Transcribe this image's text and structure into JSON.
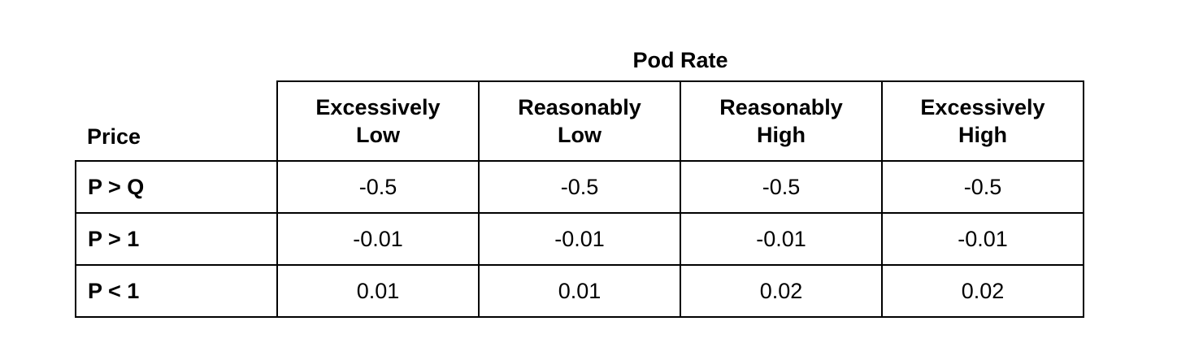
{
  "table": {
    "title": "Pod Rate",
    "corner_label": "Price",
    "columns": [
      "Excessively\nLow",
      "Reasonably\nLow",
      "Reasonably\nHigh",
      "Excessively\nHigh"
    ],
    "rows": [
      {
        "label": "P > Q",
        "values": [
          "-0.5",
          "-0.5",
          "-0.5",
          "-0.5"
        ]
      },
      {
        "label": "P > 1",
        "values": [
          "-0.01",
          "-0.01",
          "-0.01",
          "-0.01"
        ]
      },
      {
        "label": "P < 1",
        "values": [
          "0.01",
          "0.01",
          "0.02",
          "0.02"
        ]
      }
    ]
  }
}
